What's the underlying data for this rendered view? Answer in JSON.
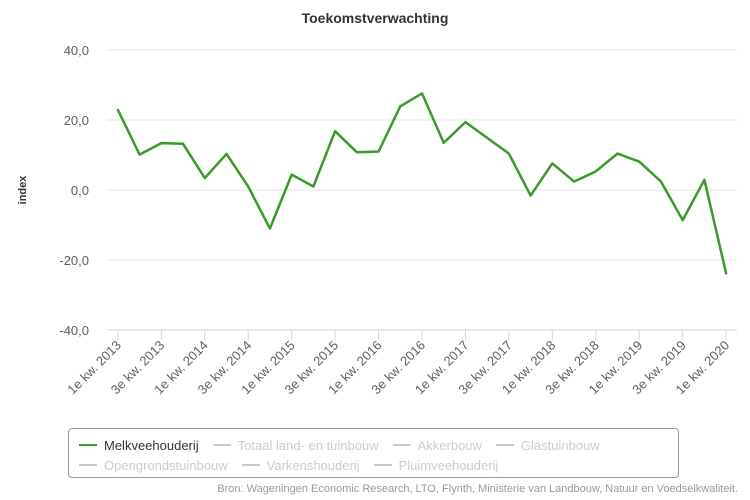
{
  "chart_data": {
    "type": "line",
    "title": "Toekomstverwachting",
    "ylabel": "index",
    "xlabel": "",
    "ylim": [
      -40,
      40
    ],
    "yticks": [
      "40,0",
      "20,0",
      "0,0",
      "-20,0",
      "-40,0"
    ],
    "ytick_values": [
      40,
      20,
      0,
      -20,
      -40
    ],
    "x": [
      "1e kw. 2013",
      "2e kw. 2013",
      "3e kw. 2013",
      "4e kw. 2013",
      "1e kw. 2014",
      "2e kw. 2014",
      "3e kw. 2014",
      "4e kw. 2014",
      "1e kw. 2015",
      "2e kw. 2015",
      "3e kw. 2015",
      "4e kw. 2015",
      "1e kw. 2016",
      "2e kw. 2016",
      "3e kw. 2016",
      "4e kw. 2016",
      "1e kw. 2017",
      "2e kw. 2017",
      "3e kw. 2017",
      "4e kw. 2017",
      "1e kw. 2018",
      "2e kw. 2018",
      "3e kw. 2018",
      "4e kw. 2018",
      "1e kw. 2019",
      "2e kw. 2019",
      "3e kw. 2019",
      "4e kw. 2019",
      "1e kw. 2020"
    ],
    "xtick_labels": [
      "1e kw. 2013",
      "3e kw. 2013",
      "1e kw. 2014",
      "3e kw. 2014",
      "1e kw. 2015",
      "3e kw. 2015",
      "1e kw. 2016",
      "3e kw. 2016",
      "1e kw. 2017",
      "3e kw. 2017",
      "1e kw. 2018",
      "3e kw. 2018",
      "1e kw. 2019",
      "3e kw. 2019",
      "1e kw. 2020"
    ],
    "series": [
      {
        "name": "Melkveehouderij",
        "color": "#3a9a2a",
        "values": [
          22.9,
          10.1,
          13.4,
          13.2,
          3.4,
          10.3,
          1.0,
          -11.0,
          4.4,
          1.0,
          16.8,
          10.8,
          11.0,
          23.9,
          27.6,
          13.5,
          19.4,
          14.9,
          10.4,
          -1.6,
          7.6,
          2.4,
          5.3,
          10.4,
          8.1,
          2.4,
          -8.6,
          2.9,
          -23.8
        ]
      }
    ],
    "grid": true,
    "legend_position": "bottom"
  },
  "legend": {
    "items": [
      {
        "label": "Melkveehouderij",
        "active": true,
        "color": "#3a9a2a"
      },
      {
        "label": "Totaal land- en tuinbouw",
        "active": false,
        "color": "#cccccc"
      },
      {
        "label": "Akkerbouw",
        "active": false,
        "color": "#cccccc"
      },
      {
        "label": "Glastuinbouw",
        "active": false,
        "color": "#cccccc"
      },
      {
        "label": "Opengrondstuinbouw",
        "active": false,
        "color": "#cccccc"
      },
      {
        "label": "Varkenshouderij",
        "active": false,
        "color": "#cccccc"
      },
      {
        "label": "Pluimveehouderij",
        "active": false,
        "color": "#cccccc"
      }
    ]
  },
  "source": "Bron: Wageningen Economic Research, LTO, Flynth, Ministerie van Landbouw, Natuur en Voedselkwaliteit."
}
